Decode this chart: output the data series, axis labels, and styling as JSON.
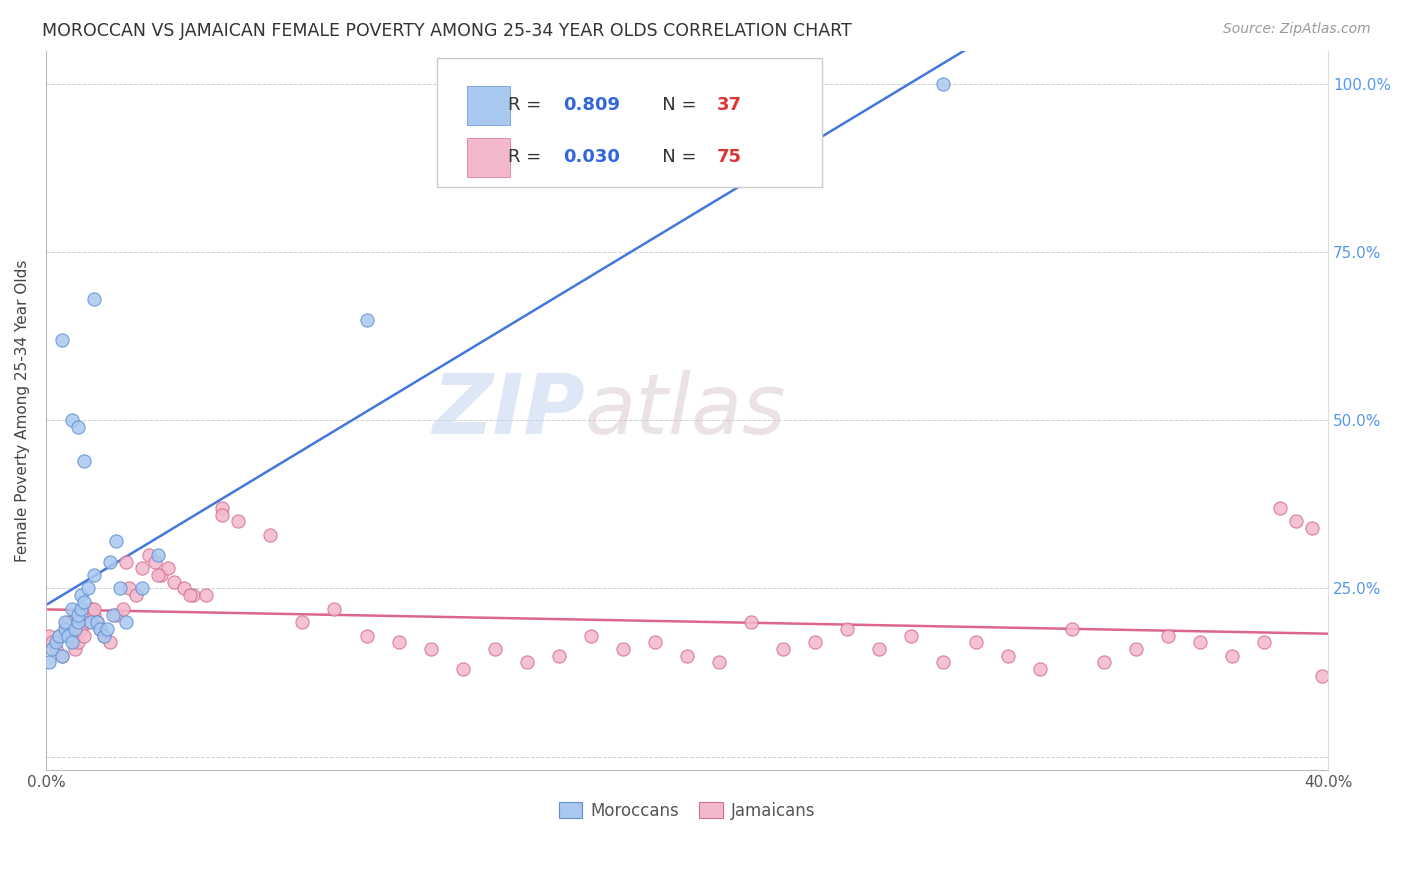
{
  "title": "MOROCCAN VS JAMAICAN FEMALE POVERTY AMONG 25-34 YEAR OLDS CORRELATION CHART",
  "source": "Source: ZipAtlas.com",
  "ylabel": "Female Poverty Among 25-34 Year Olds",
  "xlim": [
    0.0,
    0.4
  ],
  "ylim": [
    -0.02,
    1.05
  ],
  "xtick_positions": [
    0.0,
    0.05,
    0.1,
    0.15,
    0.2,
    0.25,
    0.3,
    0.35,
    0.4
  ],
  "xtick_labels": [
    "0.0%",
    "",
    "",
    "",
    "",
    "",
    "",
    "",
    "40.0%"
  ],
  "ytick_positions": [
    0.0,
    0.25,
    0.5,
    0.75,
    1.0
  ],
  "ytick_labels_right": [
    "",
    "25.0%",
    "50.0%",
    "75.0%",
    "100.0%"
  ],
  "moroccan_color": "#a8c8f0",
  "moroccan_edge": "#6090d0",
  "jamaican_color": "#f4b8cc",
  "jamaican_edge": "#d07090",
  "blue_line_color": "#4477dd",
  "pink_line_color": "#dd6688",
  "legend_label1": "Moroccans",
  "legend_label2": "Jamaicans",
  "watermark_zip": "ZIP",
  "watermark_atlas": "atlas",
  "moroccan_x": [
    0.001,
    0.002,
    0.003,
    0.004,
    0.005,
    0.006,
    0.006,
    0.007,
    0.008,
    0.008,
    0.009,
    0.01,
    0.01,
    0.011,
    0.011,
    0.012,
    0.013,
    0.014,
    0.015,
    0.016,
    0.017,
    0.018,
    0.019,
    0.02,
    0.021,
    0.022,
    0.023,
    0.005,
    0.008,
    0.01,
    0.012,
    0.015,
    0.025,
    0.03,
    0.035,
    0.1,
    0.28
  ],
  "moroccan_y": [
    0.14,
    0.16,
    0.17,
    0.18,
    0.15,
    0.19,
    0.2,
    0.18,
    0.17,
    0.22,
    0.19,
    0.2,
    0.21,
    0.22,
    0.24,
    0.23,
    0.25,
    0.2,
    0.27,
    0.2,
    0.19,
    0.18,
    0.19,
    0.29,
    0.21,
    0.32,
    0.25,
    0.62,
    0.5,
    0.49,
    0.44,
    0.68,
    0.2,
    0.25,
    0.3,
    0.65,
    1.0
  ],
  "jamaican_x": [
    0.001,
    0.002,
    0.003,
    0.004,
    0.005,
    0.006,
    0.007,
    0.008,
    0.009,
    0.01,
    0.011,
    0.012,
    0.013,
    0.014,
    0.015,
    0.016,
    0.017,
    0.018,
    0.02,
    0.022,
    0.024,
    0.026,
    0.028,
    0.03,
    0.032,
    0.034,
    0.036,
    0.038,
    0.04,
    0.043,
    0.046,
    0.05,
    0.055,
    0.06,
    0.07,
    0.08,
    0.09,
    0.1,
    0.11,
    0.12,
    0.13,
    0.14,
    0.15,
    0.16,
    0.17,
    0.18,
    0.19,
    0.2,
    0.21,
    0.22,
    0.23,
    0.24,
    0.25,
    0.26,
    0.27,
    0.28,
    0.29,
    0.3,
    0.31,
    0.32,
    0.33,
    0.34,
    0.35,
    0.36,
    0.37,
    0.38,
    0.385,
    0.39,
    0.395,
    0.398,
    0.015,
    0.025,
    0.035,
    0.045,
    0.055
  ],
  "jamaican_y": [
    0.18,
    0.17,
    0.16,
    0.18,
    0.15,
    0.19,
    0.2,
    0.18,
    0.16,
    0.17,
    0.19,
    0.18,
    0.2,
    0.22,
    0.21,
    0.2,
    0.19,
    0.18,
    0.17,
    0.21,
    0.22,
    0.25,
    0.24,
    0.28,
    0.3,
    0.29,
    0.27,
    0.28,
    0.26,
    0.25,
    0.24,
    0.24,
    0.37,
    0.35,
    0.33,
    0.2,
    0.22,
    0.18,
    0.17,
    0.16,
    0.13,
    0.16,
    0.14,
    0.15,
    0.18,
    0.16,
    0.17,
    0.15,
    0.14,
    0.2,
    0.16,
    0.17,
    0.19,
    0.16,
    0.18,
    0.14,
    0.17,
    0.15,
    0.13,
    0.19,
    0.14,
    0.16,
    0.18,
    0.17,
    0.15,
    0.17,
    0.37,
    0.35,
    0.34,
    0.12,
    0.22,
    0.29,
    0.27,
    0.24,
    0.36
  ]
}
